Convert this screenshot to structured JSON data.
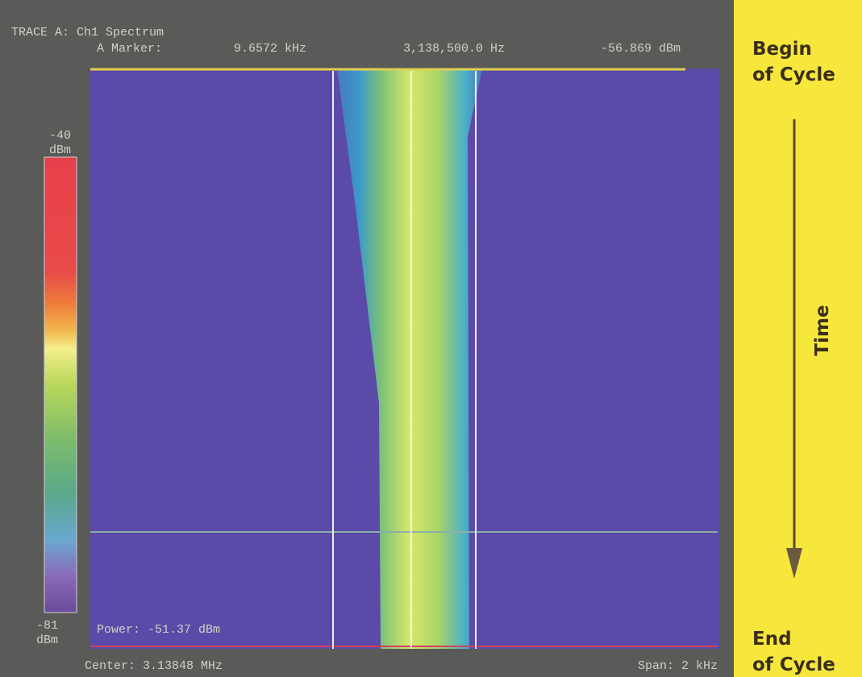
{
  "screen": {
    "trace_title": "TRACE A: Ch1 Spectrum",
    "marker_label": "A Marker:",
    "marker_offset": "9.6572 kHz",
    "marker_freq": "3,138,500.0 Hz",
    "marker_level": "-56.869 dBm",
    "scale_top": "-40",
    "scale_top_unit": "dBm",
    "scale_bottom": "-81",
    "scale_bottom_unit": "dBm",
    "power": "Power: -51.37 dBm",
    "center": "Center: 3.13848 MHz",
    "span": "Span: 2 kHz"
  },
  "annotations": {
    "begin_line1": "Begin",
    "begin_line2": "of Cycle",
    "time": "Time",
    "end_line1": "End",
    "end_line2": "of Cycle"
  }
}
